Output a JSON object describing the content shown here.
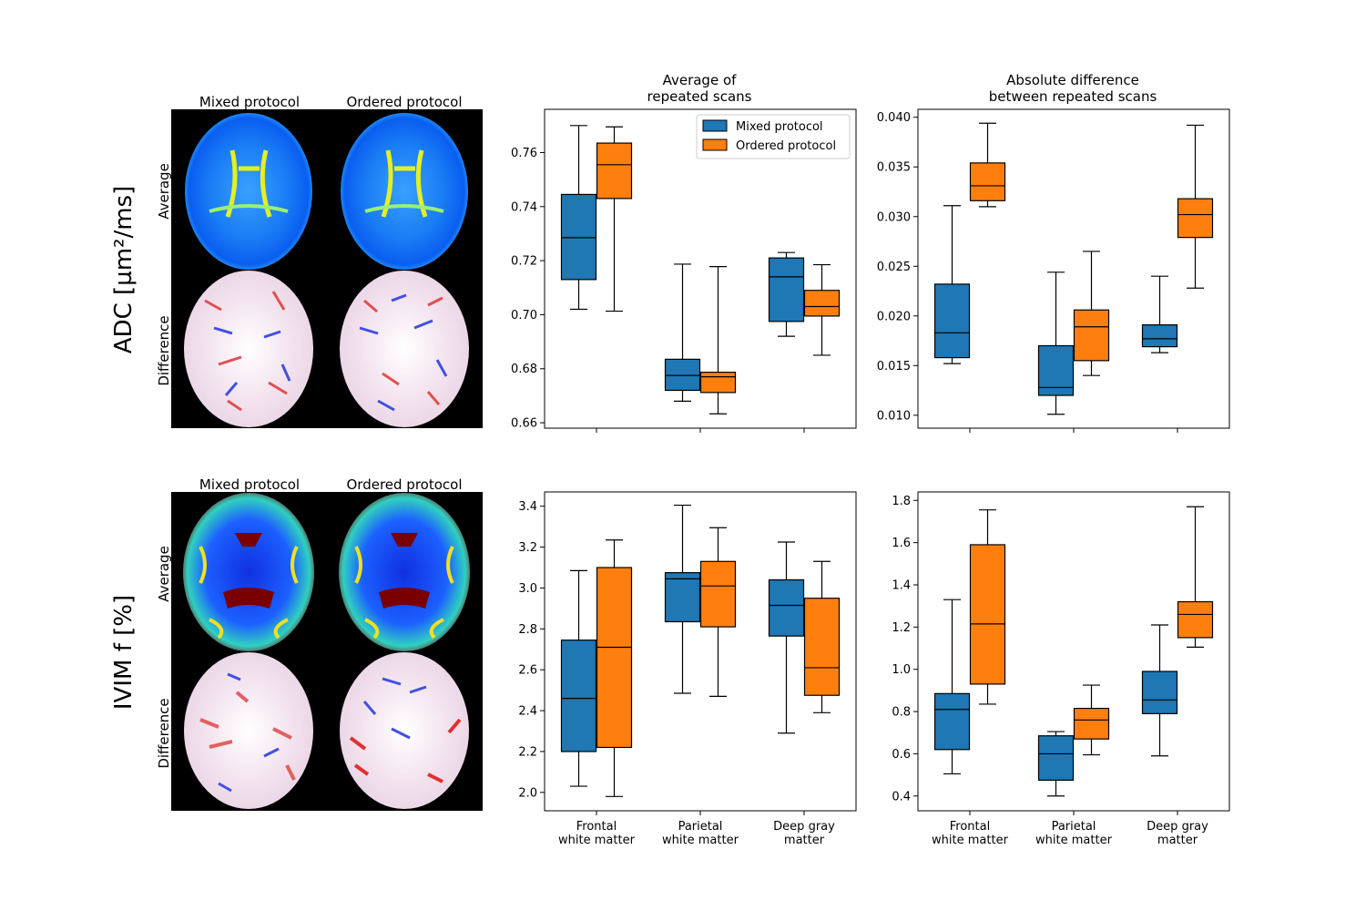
{
  "row_labels": [
    "ADC [µm²/ms]",
    "IVIM f [%]"
  ],
  "map_labels": {
    "columns": [
      "Mixed protocol",
      "Ordered protocol"
    ],
    "rows": [
      "Average",
      "Difference"
    ]
  },
  "column_titles": [
    [
      "Average of",
      "repeated scans"
    ],
    [
      "Absolute difference",
      "between repeated scans"
    ]
  ],
  "legend": [
    "Mixed protocol",
    "Ordered protocol"
  ],
  "colors": {
    "mixed": "#1f77b4",
    "ordered": "#ff7f0e",
    "map_background": "#000000"
  },
  "categories": [
    [
      "Frontal",
      "white matter"
    ],
    [
      "Parietal",
      "white matter"
    ],
    [
      "Deep gray",
      "matter"
    ]
  ],
  "chart_data": [
    {
      "type": "box",
      "id": "adc-average",
      "ylim": [
        0.658,
        0.776
      ],
      "yticks": [
        "0.66",
        "0.68",
        "0.70",
        "0.72",
        "0.74",
        "0.76"
      ],
      "legend": true,
      "series": [
        {
          "name": "Mixed protocol",
          "boxes": [
            {
              "whislo": 0.702,
              "q1": 0.713,
              "med": 0.7285,
              "q3": 0.7445,
              "whishi": 0.77
            },
            {
              "whislo": 0.668,
              "q1": 0.672,
              "med": 0.6775,
              "q3": 0.6835,
              "whishi": 0.7187
            },
            {
              "whislo": 0.692,
              "q1": 0.6975,
              "med": 0.714,
              "q3": 0.721,
              "whishi": 0.723
            }
          ]
        },
        {
          "name": "Ordered protocol",
          "boxes": [
            {
              "whislo": 0.7013,
              "q1": 0.743,
              "med": 0.7555,
              "q3": 0.7635,
              "whishi": 0.7695
            },
            {
              "whislo": 0.6633,
              "q1": 0.6712,
              "med": 0.677,
              "q3": 0.6787,
              "whishi": 0.7178
            },
            {
              "whislo": 0.685,
              "q1": 0.6995,
              "med": 0.703,
              "q3": 0.709,
              "whishi": 0.7185
            }
          ]
        }
      ]
    },
    {
      "type": "box",
      "id": "adc-absdiff",
      "ylim": [
        0.0087,
        0.0408
      ],
      "yticks": [
        "0.010",
        "0.015",
        "0.020",
        "0.025",
        "0.030",
        "0.035",
        "0.040"
      ],
      "legend": false,
      "series": [
        {
          "name": "Mixed protocol",
          "boxes": [
            {
              "whislo": 0.0152,
              "q1": 0.0158,
              "med": 0.0183,
              "q3": 0.0232,
              "whishi": 0.0311
            },
            {
              "whislo": 0.0101,
              "q1": 0.012,
              "med": 0.0128,
              "q3": 0.017,
              "whishi": 0.0244
            },
            {
              "whislo": 0.0163,
              "q1": 0.0169,
              "med": 0.0177,
              "q3": 0.0191,
              "whishi": 0.024
            }
          ]
        },
        {
          "name": "Ordered protocol",
          "boxes": [
            {
              "whislo": 0.031,
              "q1": 0.0316,
              "med": 0.0331,
              "q3": 0.0354,
              "whishi": 0.0394
            },
            {
              "whislo": 0.014,
              "q1": 0.0155,
              "med": 0.0189,
              "q3": 0.0206,
              "whishi": 0.0265
            },
            {
              "whislo": 0.0228,
              "q1": 0.0279,
              "med": 0.0302,
              "q3": 0.0318,
              "whishi": 0.0392
            }
          ]
        }
      ]
    },
    {
      "type": "box",
      "id": "ivim-average",
      "ylim": [
        1.91,
        3.47
      ],
      "yticks": [
        "2.0",
        "2.2",
        "2.4",
        "2.6",
        "2.8",
        "3.0",
        "3.2",
        "3.4"
      ],
      "legend": false,
      "series": [
        {
          "name": "Mixed protocol",
          "boxes": [
            {
              "whislo": 2.03,
              "q1": 2.2,
              "med": 2.46,
              "q3": 2.745,
              "whishi": 3.085
            },
            {
              "whislo": 2.485,
              "q1": 2.835,
              "med": 3.045,
              "q3": 3.075,
              "whishi": 3.405
            },
            {
              "whislo": 2.29,
              "q1": 2.765,
              "med": 2.915,
              "q3": 3.04,
              "whishi": 3.225
            }
          ]
        },
        {
          "name": "Ordered protocol",
          "boxes": [
            {
              "whislo": 1.98,
              "q1": 2.22,
              "med": 2.71,
              "q3": 3.1,
              "whishi": 3.235
            },
            {
              "whislo": 2.47,
              "q1": 2.81,
              "med": 3.01,
              "q3": 3.13,
              "whishi": 3.295
            },
            {
              "whislo": 2.39,
              "q1": 2.475,
              "med": 2.61,
              "q3": 2.95,
              "whishi": 3.13
            }
          ]
        }
      ]
    },
    {
      "type": "box",
      "id": "ivim-absdiff",
      "ylim": [
        0.33,
        1.84
      ],
      "yticks": [
        "0.4",
        "0.6",
        "0.8",
        "1.0",
        "1.2",
        "1.4",
        "1.6",
        "1.8"
      ],
      "legend": false,
      "series": [
        {
          "name": "Mixed protocol",
          "boxes": [
            {
              "whislo": 0.505,
              "q1": 0.62,
              "med": 0.81,
              "q3": 0.885,
              "whishi": 1.33
            },
            {
              "whislo": 0.4,
              "q1": 0.475,
              "med": 0.6,
              "q3": 0.685,
              "whishi": 0.705
            },
            {
              "whislo": 0.59,
              "q1": 0.79,
              "med": 0.855,
              "q3": 0.99,
              "whishi": 1.21
            }
          ]
        },
        {
          "name": "Ordered protocol",
          "boxes": [
            {
              "whislo": 0.835,
              "q1": 0.93,
              "med": 1.215,
              "q3": 1.59,
              "whishi": 1.755
            },
            {
              "whislo": 0.595,
              "q1": 0.67,
              "med": 0.76,
              "q3": 0.815,
              "whishi": 0.925
            },
            {
              "whislo": 1.105,
              "q1": 1.15,
              "med": 1.26,
              "q3": 1.32,
              "whishi": 1.77
            }
          ]
        }
      ]
    }
  ]
}
